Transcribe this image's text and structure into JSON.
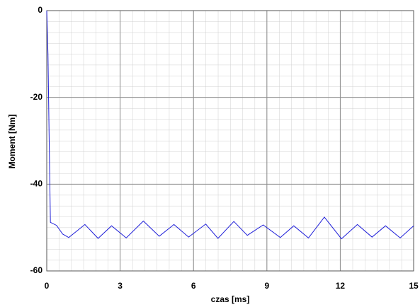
{
  "chart_data": {
    "type": "line",
    "x_label": "czas [ms]",
    "y_label": "Moment [Nm]",
    "xlim": [
      0,
      15
    ],
    "ylim": [
      -60,
      0
    ],
    "xticks": [
      0,
      3,
      6,
      9,
      12,
      15
    ],
    "yticks": [
      -60,
      -40,
      -20,
      0
    ],
    "grid": true,
    "series": [
      {
        "color": "#1f1fd8",
        "x": [
          0,
          0.05,
          0.1,
          0.15,
          0.4,
          0.65,
          0.9,
          1.56,
          2.1,
          2.65,
          3.25,
          3.95,
          4.6,
          5.2,
          5.8,
          6.5,
          7.0,
          7.65,
          8.2,
          8.85,
          9.55,
          10.1,
          10.7,
          11.35,
          12.05,
          12.7,
          13.3,
          13.85,
          14.45,
          15
        ],
        "values": [
          0,
          -10,
          -30,
          -48.8,
          -49.5,
          -51.5,
          -52.3,
          -49.3,
          -52.5,
          -49.6,
          -52.4,
          -48.5,
          -52,
          -49.3,
          -52.2,
          -49.2,
          -52.5,
          -48.6,
          -51.8,
          -49.4,
          -52.3,
          -49.6,
          -52.4,
          -47.6,
          -52.6,
          -49.3,
          -52.2,
          -49.6,
          -52.4,
          -49.6
        ]
      }
    ]
  }
}
